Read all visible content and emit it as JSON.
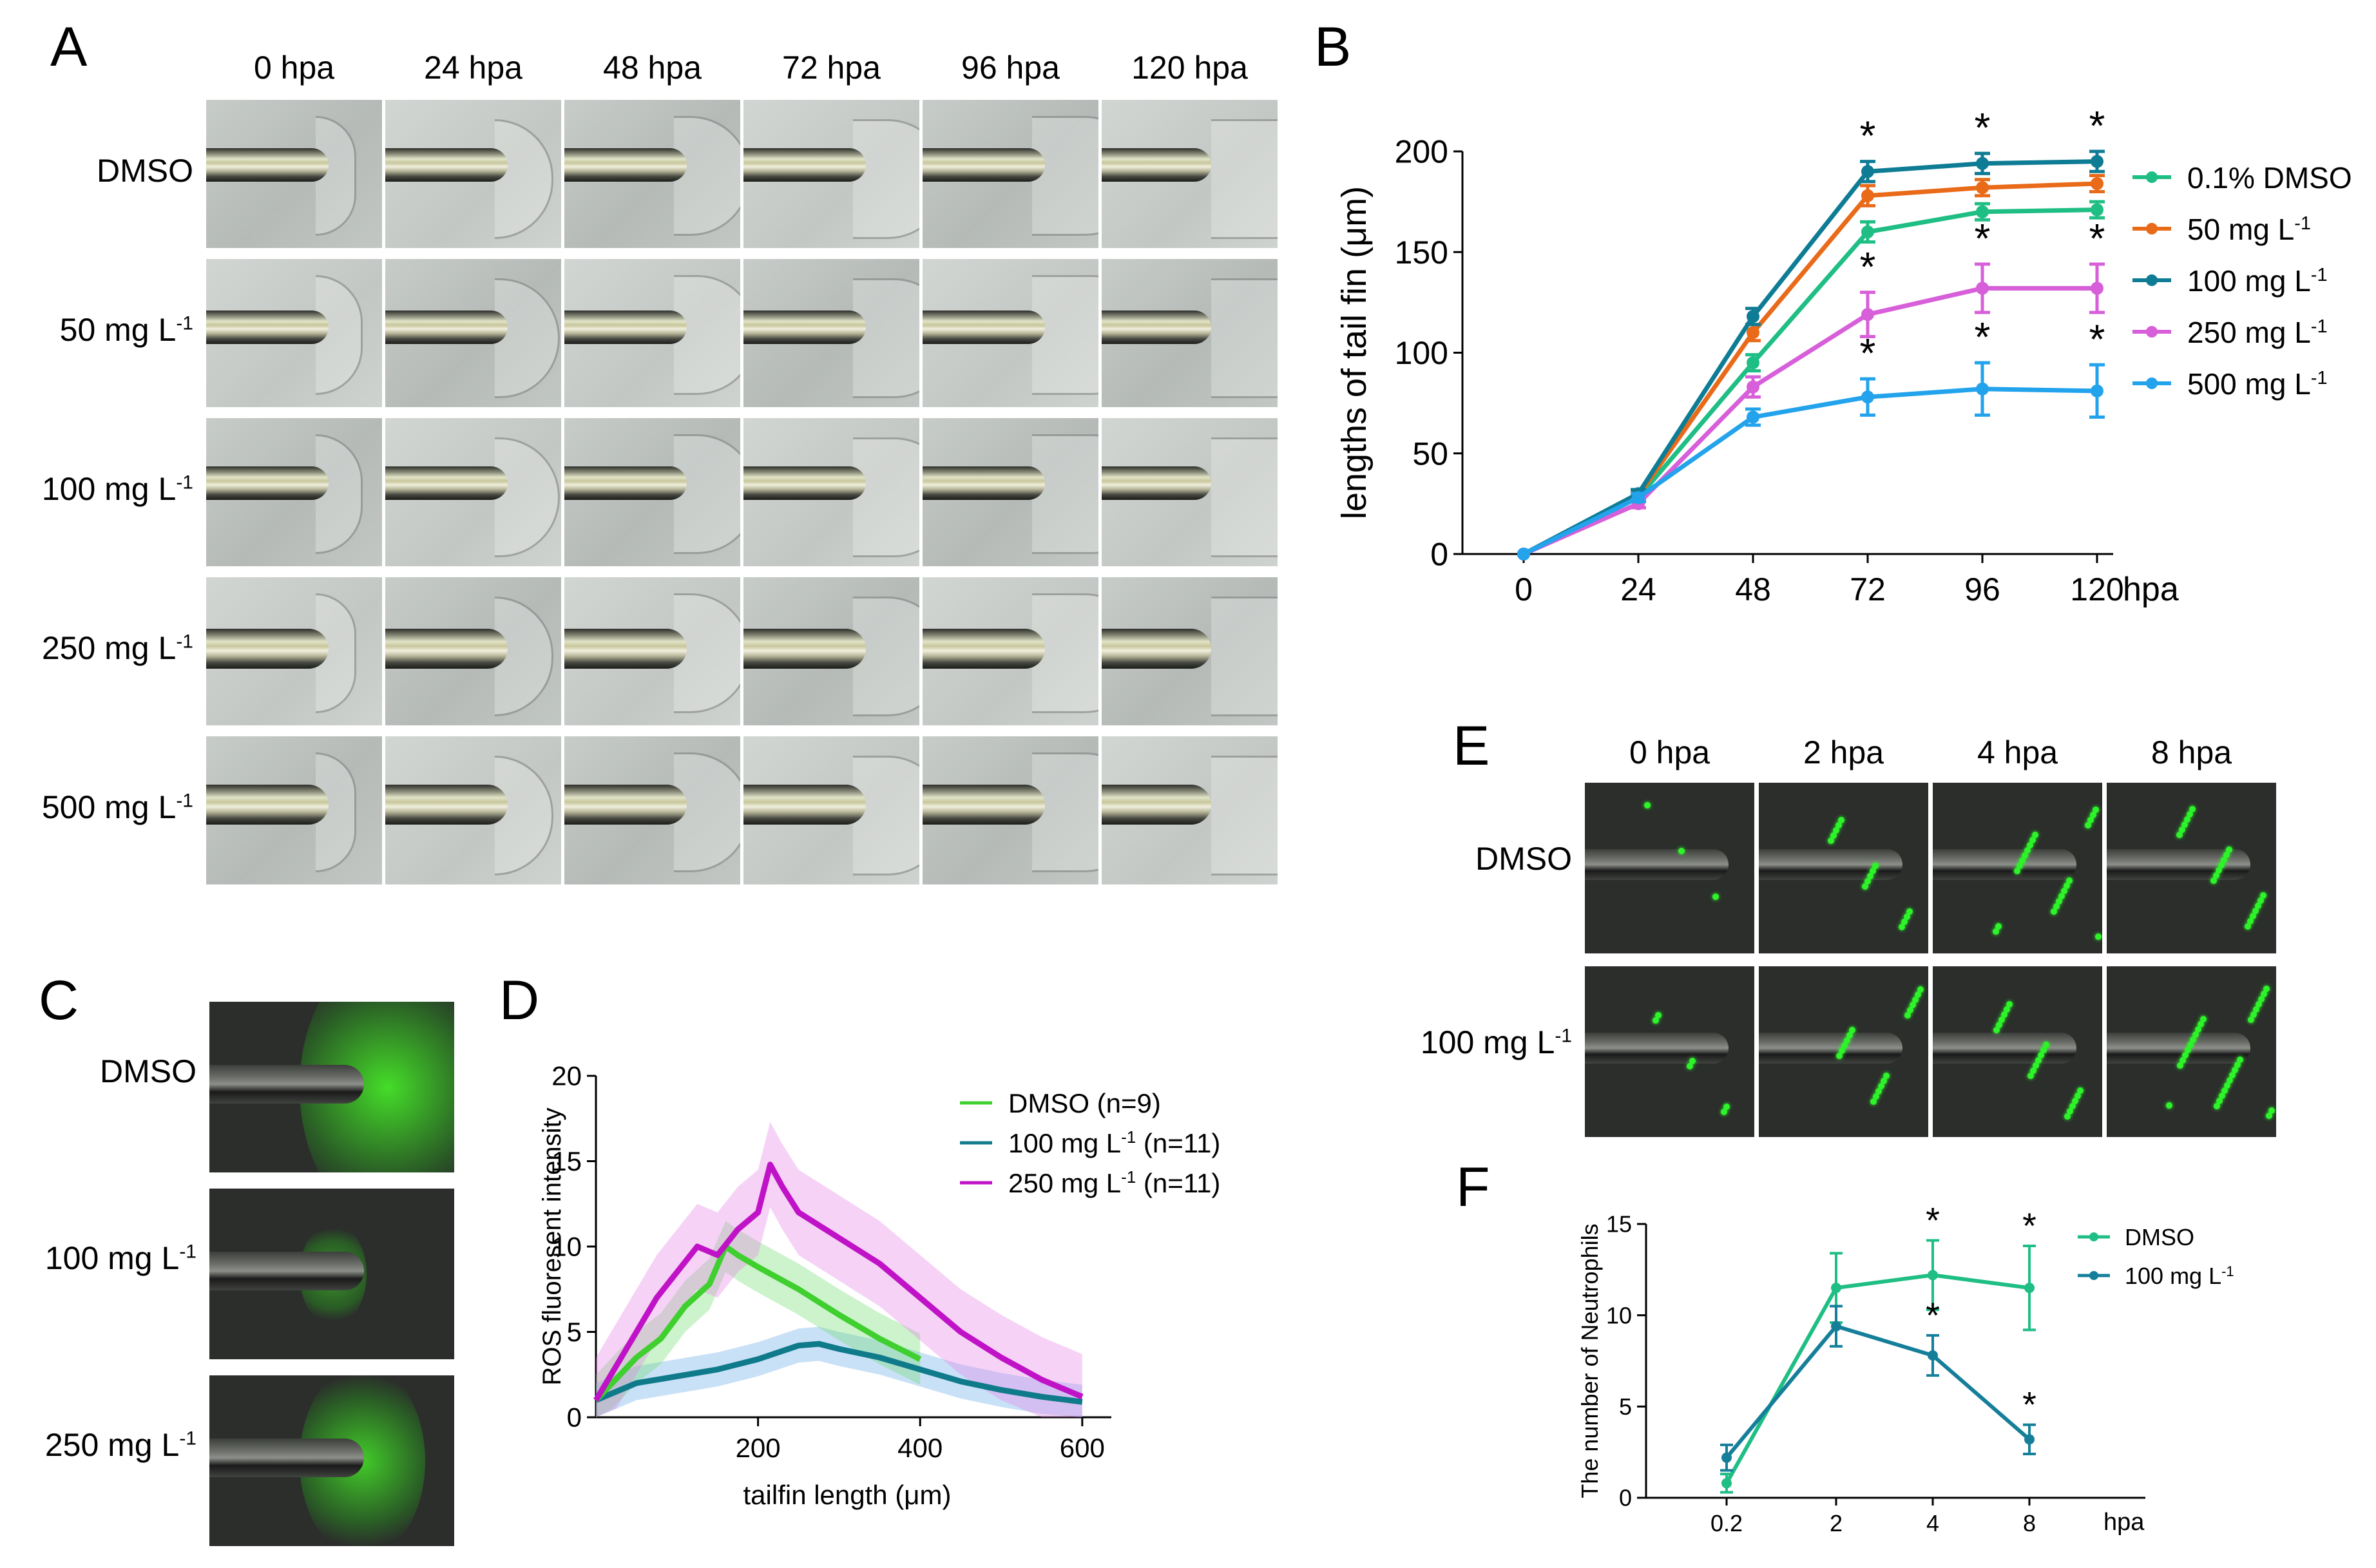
{
  "panels": {
    "A": "A",
    "B": "B",
    "C": "C",
    "D": "D",
    "E": "E",
    "F": "F"
  },
  "panelA": {
    "columns": [
      "0 hpa",
      "24 hpa",
      "48 hpa",
      "72 hpa",
      "96 hpa",
      "120 hpa"
    ],
    "rows": [
      "DMSO",
      "50 mg L",
      "100 mg L",
      "250 mg L",
      "500 mg L"
    ],
    "superscript": "-1"
  },
  "panelC": {
    "rows": [
      "DMSO",
      "100 mg L",
      "250 mg L"
    ],
    "superscript": "-1"
  },
  "panelE": {
    "columns": [
      "0 hpa",
      "2 hpa",
      "4 hpa",
      "8 hpa"
    ],
    "rows": [
      "DMSO",
      "100 mg L"
    ],
    "superscript": "-1"
  },
  "colors": {
    "dmso": "#1fbe84",
    "c50": "#e96a18",
    "c100": "#0e7c94",
    "c250": "#d75fd9",
    "c500": "#23a3ec",
    "d_dmso": "#3fcf2f",
    "d_100": "#0f7a8a",
    "d_250": "#c012c6",
    "f_dmso": "#1fbe84",
    "f_100": "#157f9a"
  },
  "chart_data": [
    {
      "id": "B",
      "type": "line",
      "ylabel": "lengths of tail fin (μm)",
      "xlabel": "hpa",
      "x": [
        0,
        24,
        48,
        72,
        96,
        120
      ],
      "xticks": [
        "0",
        "24",
        "48",
        "72",
        "96",
        "120"
      ],
      "ylim": [
        0,
        200
      ],
      "yticks": [
        "0",
        "50",
        "100",
        "150",
        "200"
      ],
      "series": [
        {
          "name": "0.1% DMSO",
          "values": [
            0,
            28,
            95,
            160,
            170,
            171
          ],
          "err": [
            0,
            2,
            4,
            5,
            4,
            4
          ]
        },
        {
          "name": "50 mg L",
          "sup": "-1",
          "values": [
            0,
            29,
            110,
            178,
            182,
            184
          ],
          "err": [
            0,
            2,
            4,
            5,
            4,
            4
          ]
        },
        {
          "name": "100 mg L",
          "sup": "-1",
          "values": [
            0,
            30,
            118,
            190,
            194,
            195
          ],
          "err": [
            0,
            2,
            4,
            5,
            5,
            5
          ]
        },
        {
          "name": "250 mg L",
          "sup": "-1",
          "values": [
            0,
            25,
            83,
            119,
            132,
            132
          ],
          "err": [
            0,
            2,
            5,
            11,
            12,
            12
          ]
        },
        {
          "name": "500 mg L",
          "sup": "-1",
          "values": [
            0,
            28,
            68,
            78,
            82,
            81
          ],
          "err": [
            0,
            2,
            4,
            9,
            13,
            13
          ]
        }
      ],
      "stars": "*"
    },
    {
      "id": "D",
      "type": "line",
      "ylabel": "ROS fluoresent intensity",
      "xlabel": "tailfin length (μm)",
      "xticks": [
        "200",
        "400",
        "600"
      ],
      "ylim": [
        0,
        20
      ],
      "yticks": [
        "0",
        "5",
        "10",
        "15",
        "20"
      ],
      "series": [
        {
          "name": "DMSO (n=9)",
          "x": [
            0,
            20,
            50,
            80,
            110,
            140,
            160,
            175,
            200,
            250,
            300,
            350,
            400
          ],
          "values": [
            1,
            2,
            3.5,
            4.6,
            6.5,
            7.8,
            10,
            9.5,
            8.8,
            7.5,
            6,
            4.6,
            3.4
          ],
          "band": 1.5
        },
        {
          "name": "100 mg L",
          "sup": "-1",
          "suffix": "(n=11)",
          "x": [
            0,
            50,
            100,
            150,
            200,
            250,
            275,
            300,
            350,
            400,
            450,
            500,
            550,
            600
          ],
          "values": [
            1,
            2,
            2.4,
            2.8,
            3.4,
            4.2,
            4.3,
            4,
            3.5,
            2.8,
            2.1,
            1.6,
            1.2,
            0.9
          ],
          "band": 1
        },
        {
          "name": "250 mg L",
          "sup": "-1",
          "suffix": "(n=11)",
          "x": [
            0,
            25,
            50,
            75,
            100,
            125,
            150,
            175,
            200,
            215,
            230,
            250,
            300,
            350,
            400,
            450,
            500,
            550,
            600
          ],
          "values": [
            1,
            3,
            5,
            7,
            8.5,
            10,
            9.5,
            11,
            12,
            14.8,
            13.5,
            12,
            10.5,
            9,
            7,
            5,
            3.5,
            2.2,
            1.2
          ],
          "band": 2.5
        }
      ]
    },
    {
      "id": "F",
      "type": "line",
      "ylabel": "The number of Neutrophils",
      "xlabel": "hpa",
      "xticks": [
        "0.2",
        "2",
        "4",
        "8"
      ],
      "ylim": [
        0,
        15
      ],
      "yticks": [
        "0",
        "5",
        "10",
        "15"
      ],
      "series": [
        {
          "name": "DMSO",
          "values": [
            0.8,
            11.5,
            12.2,
            11.5
          ],
          "err": [
            0.5,
            1.9,
            1.9,
            2.3
          ]
        },
        {
          "name": "100 mg L",
          "sup": "-1",
          "values": [
            2.2,
            9.4,
            7.8,
            3.2
          ],
          "err": [
            0.7,
            1.1,
            1.1,
            0.8
          ]
        }
      ],
      "stars": "*"
    }
  ]
}
